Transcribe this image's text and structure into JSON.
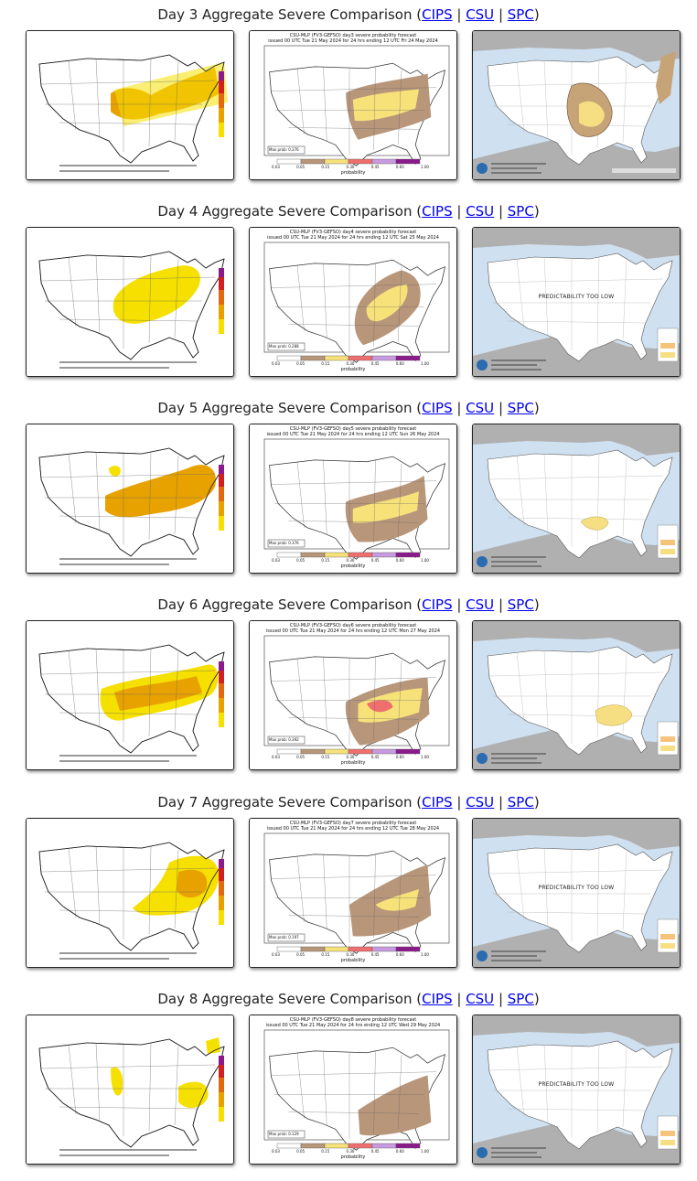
{
  "sections": [
    {
      "title": "Day 3 Aggregate Severe Comparison",
      "links": [
        "CIPS",
        "CSU",
        "SPC"
      ],
      "csu_header_1": "CSU-MLP (FV3-GEFSO) day3 severe probability forecast",
      "csu_header_2": "issued 00 UTC Tue 21 May 2024 for 24 hrs ending 12 UTC Fri 24 May 2024",
      "csu_score": "Max prob: 0.376",
      "spc_text": ""
    },
    {
      "title": "Day 4 Aggregate Severe Comparison",
      "links": [
        "CIPS",
        "CSU",
        "SPC"
      ],
      "csu_header_1": "CSU-MLP (FV3-GEFSO) day4 severe probability forecast",
      "csu_header_2": "issued 00 UTC Tue 21 May 2024 for 24 hrs ending 12 UTC Sat 25 May 2024",
      "csu_score": "Max prob: 0.288",
      "spc_text": "PREDICTABILITY TOO LOW"
    },
    {
      "title": "Day 5 Aggregate Severe Comparison",
      "links": [
        "CIPS",
        "CSU",
        "SPC"
      ],
      "csu_header_1": "CSU-MLP (FV3-GEFSO) day5 severe probability forecast",
      "csu_header_2": "issued 00 UTC Tue 21 May 2024 for 24 hrs ending 12 UTC Sun 26 May 2024",
      "csu_score": "Max prob: 0.376",
      "spc_text": ""
    },
    {
      "title": "Day 6 Aggregate Severe Comparison",
      "links": [
        "CIPS",
        "CSU",
        "SPC"
      ],
      "csu_header_1": "CSU-MLP (FV3-GEFSO) day6 severe probability forecast",
      "csu_header_2": "issued 00 UTC Tue 21 May 2024 for 24 hrs ending 12 UTC Mon 27 May 2024",
      "csu_score": "Max prob: 0.392",
      "spc_text": ""
    },
    {
      "title": "Day 7 Aggregate Severe Comparison",
      "links": [
        "CIPS",
        "CSU",
        "SPC"
      ],
      "csu_header_1": "CSU-MLP (FV3-GEFSO) day7 severe probability forecast",
      "csu_header_2": "issued 00 UTC Tue 21 May 2024 for 24 hrs ending 12 UTC Tue 28 May 2024",
      "csu_score": "Max prob: 0.197",
      "spc_text": "PREDICTABILITY TOO LOW"
    },
    {
      "title": "Day 8 Aggregate Severe Comparison",
      "links": [
        "CIPS",
        "CSU",
        "SPC"
      ],
      "csu_header_1": "CSU-MLP (FV3-GEFSO) day8 severe probability forecast",
      "csu_header_2": "issued 00 UTC Tue 21 May 2024 for 24 hrs ending 12 UTC Wed 29 May 2024",
      "csu_score": "Max prob: 0.129",
      "spc_text": "PREDICTABILITY TOO LOW"
    }
  ],
  "csu_scale_ticks": [
    "0.03",
    "0.05",
    "0.15",
    "0.30",
    "0.45",
    "0.60",
    "1.00"
  ],
  "csu_scale_label": "probability",
  "colors": {
    "link": "#0000ee",
    "cips_orange": "#e8a200",
    "cips_yellow": "#f5e000",
    "csu_brown": "#b8967a",
    "csu_yellow": "#f7e27a",
    "csu_red": "#ef6e6e",
    "spc_ocean": "#cfe0f0",
    "spc_gray": "#b0b0b0"
  }
}
